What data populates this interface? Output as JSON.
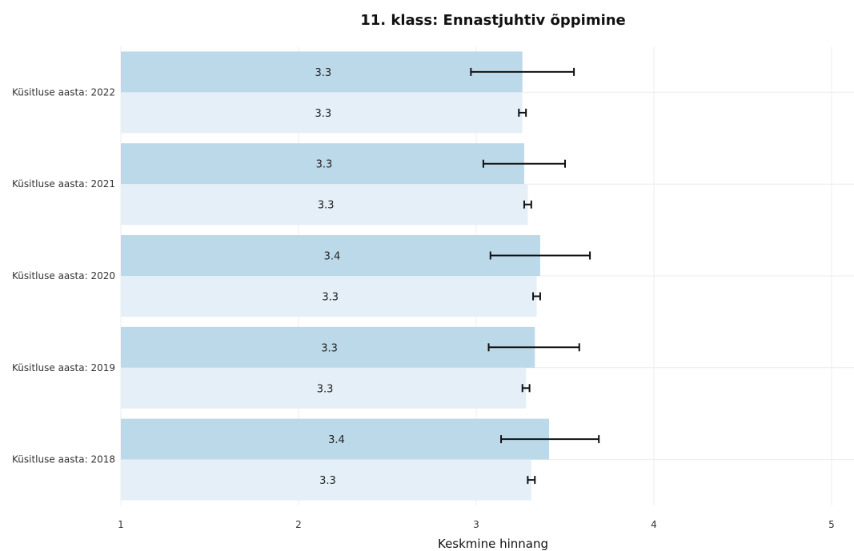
{
  "chart_data": {
    "type": "bar",
    "orientation": "horizontal",
    "title": "11. klass: Ennastjuhtiv õppimine",
    "xlabel": "Keskmine hinnang",
    "ylabel": "",
    "xlim": [
      1,
      5
    ],
    "x_ticks": [
      1,
      2,
      3,
      4,
      5
    ],
    "grid": true,
    "legend": "none",
    "categories": [
      "Küsitluse aasta: 2022",
      "Küsitluse aasta: 2021",
      "Küsitluse aasta: 2020",
      "Küsitluse aasta: 2019",
      "Küsitluse aasta: 2018"
    ],
    "series": [
      {
        "color": "#bcd9ea",
        "values": [
          3.26,
          3.27,
          3.36,
          3.33,
          3.41
        ],
        "labels": [
          "3.3",
          "3.3",
          "3.4",
          "3.3",
          "3.4"
        ],
        "error_low": [
          2.97,
          3.04,
          3.08,
          3.07,
          3.14
        ],
        "error_high": [
          3.55,
          3.5,
          3.64,
          3.58,
          3.69
        ]
      },
      {
        "color": "#e4eff8",
        "values": [
          3.26,
          3.29,
          3.34,
          3.28,
          3.31
        ],
        "labels": [
          "3.3",
          "3.3",
          "3.3",
          "3.3",
          "3.3"
        ],
        "error_low": [
          3.24,
          3.27,
          3.32,
          3.26,
          3.29
        ],
        "error_high": [
          3.28,
          3.31,
          3.36,
          3.3,
          3.33
        ]
      }
    ]
  }
}
